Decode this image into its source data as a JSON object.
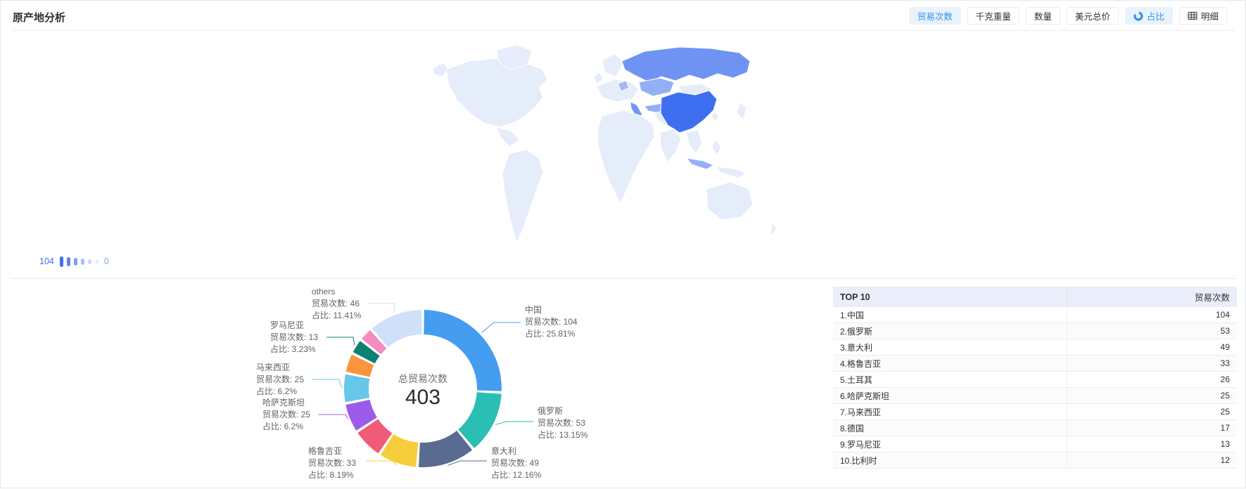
{
  "panel": {
    "title": "原产地分析"
  },
  "toolbar": {
    "metrics": [
      {
        "label": "贸易次数",
        "active": true
      },
      {
        "label": "千克重量",
        "active": false
      },
      {
        "label": "数量",
        "active": false
      },
      {
        "label": "美元总价",
        "active": false
      }
    ],
    "views": [
      {
        "label": "占比",
        "icon": "donut-chart-icon",
        "active": true
      },
      {
        "label": "明细",
        "icon": "table-grid-icon",
        "active": false
      }
    ]
  },
  "colors": {
    "accent": "#3a8ee6",
    "active_button_bg": "#e8f3fd",
    "map_low": "#e5ecfa",
    "map_high": "#3e6ff0",
    "label_text": "#606266"
  },
  "map_legend": {
    "max": "104",
    "min": "0",
    "bar_colors": [
      "#4470ee",
      "#5b82f1",
      "#7f9ef4",
      "#a9bdf7",
      "#ccd9fa",
      "#e1e9fc"
    ]
  },
  "chart_data": [
    {
      "type": "heatmap",
      "subtype": "choropleth_world_map",
      "metric": "贸易次数",
      "range": [
        0,
        104
      ],
      "regions": [
        {
          "name": "中国",
          "value": 104
        },
        {
          "name": "俄罗斯",
          "value": 53
        },
        {
          "name": "意大利",
          "value": 49
        },
        {
          "name": "格鲁吉亚",
          "value": 33
        },
        {
          "name": "土耳其",
          "value": 26
        },
        {
          "name": "哈萨克斯坦",
          "value": 25
        },
        {
          "name": "马来西亚",
          "value": 25
        },
        {
          "name": "德国",
          "value": 17
        },
        {
          "name": "罗马尼亚",
          "value": 13
        },
        {
          "name": "比利时",
          "value": 12
        }
      ]
    },
    {
      "type": "pie",
      "subtype": "donut",
      "total": 403,
      "center_label": "总贸易次数",
      "center_value": "403",
      "count_prefix": "贸易次数: ",
      "pct_prefix": "占比: ",
      "items": [
        {
          "name": "中国",
          "value": 104,
          "pct": "25.81%",
          "color": "#459df0",
          "label_visible": true
        },
        {
          "name": "俄罗斯",
          "value": 53,
          "pct": "13.15%",
          "color": "#2bbfb3",
          "label_visible": true
        },
        {
          "name": "意大利",
          "value": 49,
          "pct": "12.16%",
          "color": "#5a6b91",
          "label_visible": true
        },
        {
          "name": "格鲁吉亚",
          "value": 33,
          "pct": "8.19%",
          "color": "#f6ce3b",
          "label_visible": true
        },
        {
          "name": "土耳其",
          "value": 26,
          "pct": "6.45%",
          "color": "#f05c78",
          "label_visible": false
        },
        {
          "name": "哈萨克斯坦",
          "value": 25,
          "pct": "6.2%",
          "color": "#9c5beb",
          "label_visible": true
        },
        {
          "name": "马来西亚",
          "value": 25,
          "pct": "6.2%",
          "color": "#67c7e8",
          "label_visible": true
        },
        {
          "name": "德国",
          "value": 17,
          "pct": "4.22%",
          "color": "#f9943f",
          "label_visible": false
        },
        {
          "name": "罗马尼亚",
          "value": 13,
          "pct": "3.23%",
          "color": "#0e8074",
          "label_visible": true
        },
        {
          "name": "比利时",
          "value": 12,
          "pct": "2.98%",
          "color": "#f58bc3",
          "label_visible": false
        },
        {
          "name": "others",
          "value": 46,
          "pct": "11.41%",
          "color": "#cfe0f8",
          "label_visible": true
        }
      ]
    },
    {
      "type": "table",
      "title": "TOP 10",
      "value_header": "贸易次数",
      "rows": [
        {
          "rank": "1",
          "name": "中国",
          "value": 104
        },
        {
          "rank": "2",
          "name": "俄罗斯",
          "value": 53
        },
        {
          "rank": "3",
          "name": "意大利",
          "value": 49
        },
        {
          "rank": "4",
          "name": "格鲁吉亚",
          "value": 33
        },
        {
          "rank": "5",
          "name": "土耳其",
          "value": 26
        },
        {
          "rank": "6",
          "name": "哈萨克斯坦",
          "value": 25
        },
        {
          "rank": "7",
          "name": "马来西亚",
          "value": 25
        },
        {
          "rank": "8",
          "name": "德国",
          "value": 17
        },
        {
          "rank": "9",
          "name": "罗马尼亚",
          "value": 13
        },
        {
          "rank": "10",
          "name": "比利时",
          "value": 12
        }
      ]
    }
  ]
}
